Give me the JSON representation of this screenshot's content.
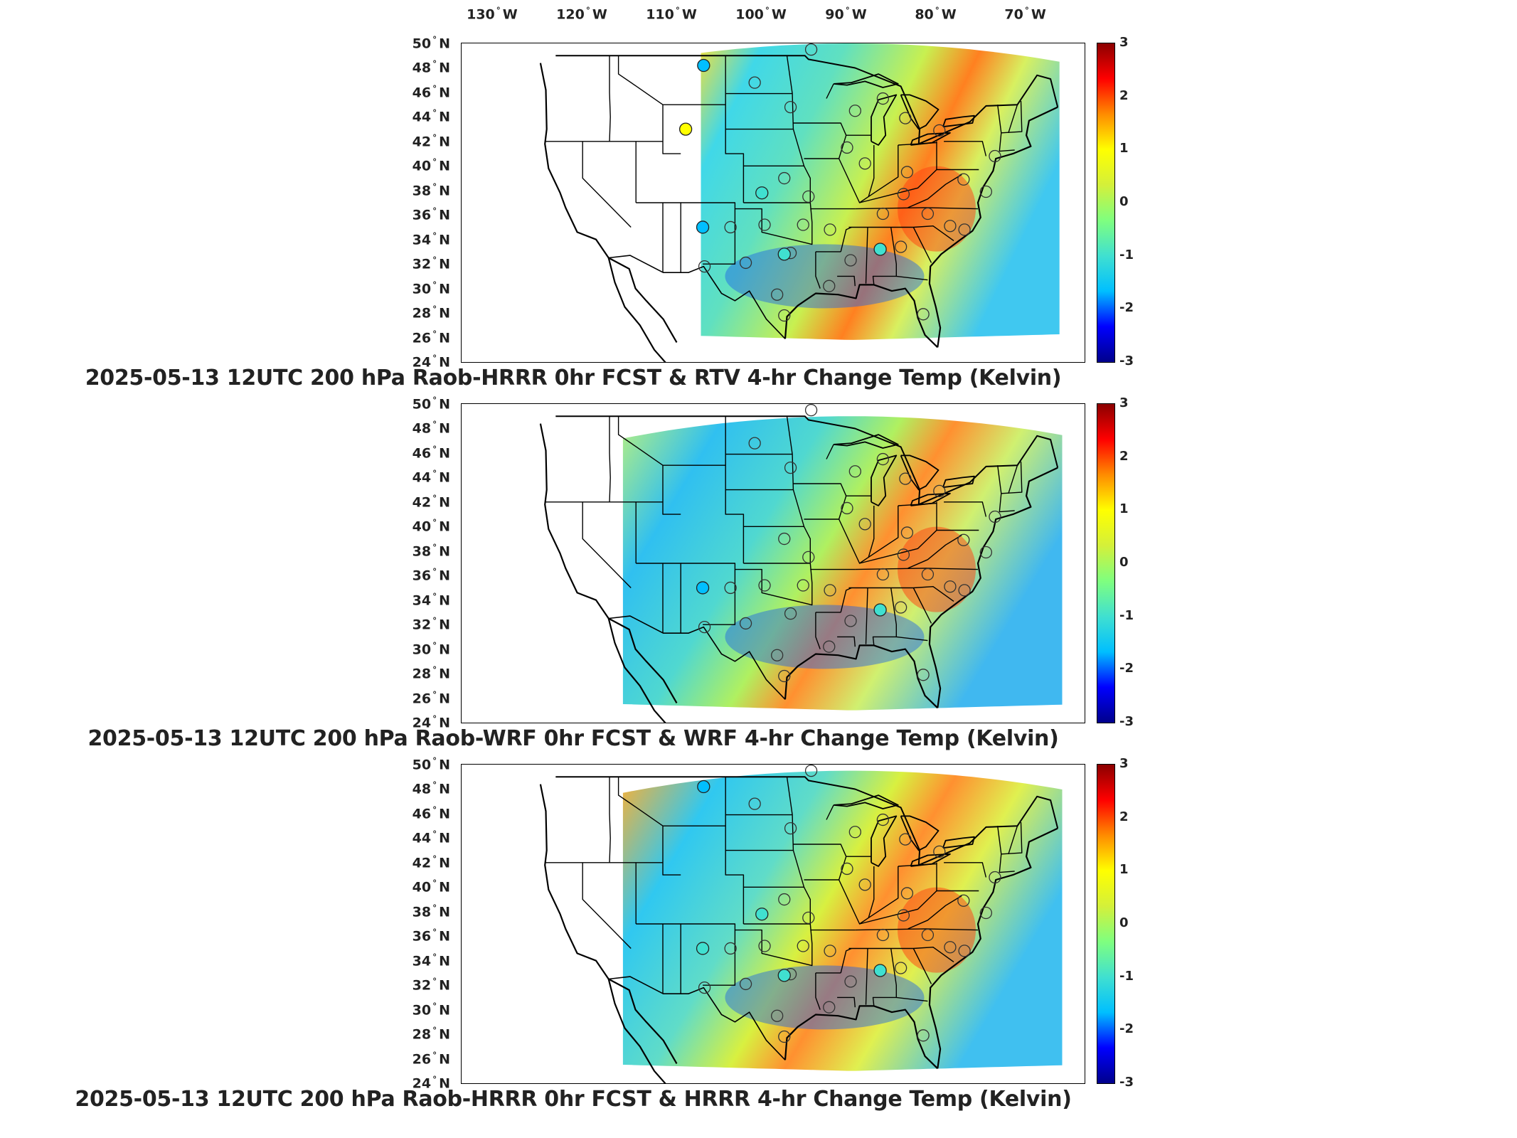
{
  "longitude_labels": [
    "130° W",
    "120° W",
    "110° W",
    "100° W",
    "90° W",
    "80° W",
    "70° W"
  ],
  "latitude_labels": [
    "50° N",
    "48° N",
    "46° N",
    "44° N",
    "42° N",
    "40° N",
    "38° N",
    "36° N",
    "34° N",
    "32° N",
    "30° N",
    "28° N",
    "26° N",
    "24° N"
  ],
  "colorbar_ticks": [
    "3",
    "2",
    "1",
    "0",
    "-1",
    "-2",
    "-3"
  ],
  "colorbar_range": [
    -3,
    3
  ],
  "colormap": [
    "#00008b",
    "#0000ff",
    "#00bfff",
    "#40e0d0",
    "#7fff7f",
    "#d4f03a",
    "#ffff00",
    "#ff8c00",
    "#ff0000",
    "#8b0000"
  ],
  "panels": [
    {
      "title": "2025-05-13 12UTC 200 hPa Raob-HRRR 0hr FCST & RTV 4-hr Change Temp (Kelvin)",
      "filled_stations": [
        {
          "lon": -106.5,
          "lat": 48.2,
          "value": -1.5
        },
        {
          "lon": -108.5,
          "lat": 43.0,
          "value": 0.8
        },
        {
          "lon": -106.6,
          "lat": 35.0,
          "value": -1.4
        },
        {
          "lon": -100.0,
          "lat": 37.8,
          "value": -1.3
        },
        {
          "lon": -97.5,
          "lat": 32.8,
          "value": -1.2
        },
        {
          "lon": -86.8,
          "lat": 33.2,
          "value": -1.1
        }
      ]
    },
    {
      "title": "2025-05-13 12UTC 200 hPa Raob-WRF 0hr FCST & WRF 4-hr Change Temp (Kelvin)",
      "filled_stations": [
        {
          "lon": -106.6,
          "lat": 35.0,
          "value": -1.4
        },
        {
          "lon": -86.8,
          "lat": 33.2,
          "value": -1.3
        }
      ]
    },
    {
      "title": "2025-05-13 12UTC 200 hPa Raob-HRRR 0hr FCST & HRRR 4-hr Change Temp (Kelvin)",
      "filled_stations": [
        {
          "lon": -106.5,
          "lat": 48.2,
          "value": -1.5
        },
        {
          "lon": -106.6,
          "lat": 35.0,
          "value": -1.3
        },
        {
          "lon": -100.0,
          "lat": 37.8,
          "value": -1.3
        },
        {
          "lon": -97.5,
          "lat": 32.8,
          "value": -1.2
        },
        {
          "lon": -86.8,
          "lat": 33.2,
          "value": -1.3
        }
      ]
    }
  ]
}
